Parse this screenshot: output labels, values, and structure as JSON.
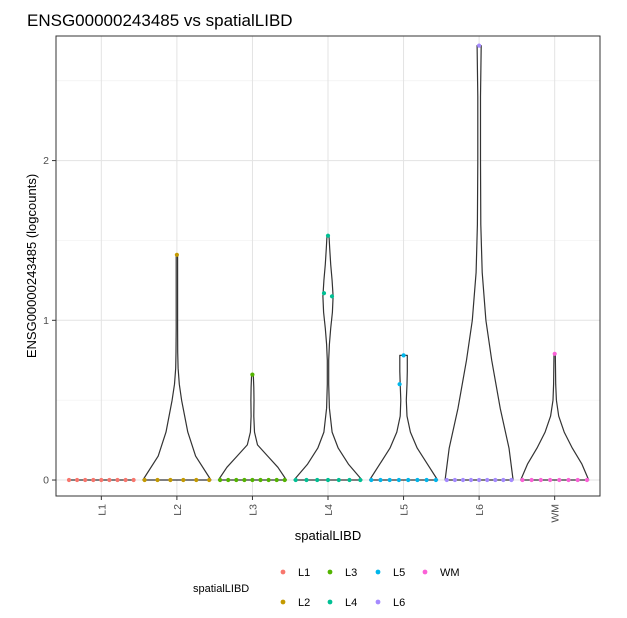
{
  "chart_data": {
    "type": "violin",
    "title": "ENSG00000243485 vs spatialLIBD",
    "xlabel": "spatialLIBD",
    "ylabel": "ENSG00000243485 (logcounts)",
    "categories": [
      "L1",
      "L2",
      "L3",
      "L4",
      "L5",
      "L6",
      "WM"
    ],
    "ylim": [
      -0.1,
      2.78
    ],
    "yticks": [
      0,
      1,
      2
    ],
    "grid": true,
    "legend": {
      "title": "spatialLIBD",
      "position": "bottom",
      "entries": [
        "L1",
        "L2",
        "L3",
        "L4",
        "L5",
        "L6",
        "WM"
      ]
    },
    "colors": {
      "L1": "#F8766D",
      "L2": "#C49A00",
      "L3": "#53B400",
      "L4": "#00C094",
      "L5": "#00B6EB",
      "L6": "#A58AFF",
      "WM": "#FB61D7"
    },
    "violins": [
      {
        "category": "L1",
        "max": 0,
        "profile": [
          [
            0,
            1
          ]
        ]
      },
      {
        "category": "L2",
        "max": 1.41,
        "profile": [
          [
            0,
            1
          ],
          [
            0.15,
            0.55
          ],
          [
            0.3,
            0.32
          ],
          [
            0.5,
            0.14
          ],
          [
            0.6,
            0.07
          ],
          [
            0.7,
            0.035
          ],
          [
            0.8,
            0.025
          ],
          [
            0.95,
            0.02
          ],
          [
            1.1,
            0.02
          ],
          [
            1.25,
            0.02
          ],
          [
            1.41,
            0.02
          ]
        ]
      },
      {
        "category": "L3",
        "max": 0.66,
        "profile": [
          [
            0,
            1
          ],
          [
            0.08,
            0.75
          ],
          [
            0.15,
            0.45
          ],
          [
            0.22,
            0.15
          ],
          [
            0.3,
            0.06
          ],
          [
            0.4,
            0.04
          ],
          [
            0.5,
            0.045
          ],
          [
            0.58,
            0.04
          ],
          [
            0.66,
            0.025
          ]
        ]
      },
      {
        "category": "L4",
        "max": 1.53,
        "profile": [
          [
            0,
            1
          ],
          [
            0.1,
            0.6
          ],
          [
            0.2,
            0.3
          ],
          [
            0.3,
            0.12
          ],
          [
            0.45,
            0.04
          ],
          [
            0.6,
            0.02
          ],
          [
            0.75,
            0.02
          ],
          [
            0.85,
            0.04
          ],
          [
            0.95,
            0.08
          ],
          [
            1.05,
            0.13
          ],
          [
            1.15,
            0.15
          ],
          [
            1.25,
            0.12
          ],
          [
            1.35,
            0.08
          ],
          [
            1.45,
            0.05
          ],
          [
            1.53,
            0.03
          ]
        ]
      },
      {
        "category": "L5",
        "max": 0.78,
        "profile": [
          [
            0,
            1
          ],
          [
            0.1,
            0.7
          ],
          [
            0.2,
            0.4
          ],
          [
            0.3,
            0.2
          ],
          [
            0.4,
            0.1
          ],
          [
            0.5,
            0.08
          ],
          [
            0.6,
            0.1
          ],
          [
            0.68,
            0.11
          ],
          [
            0.78,
            0.11
          ]
        ]
      },
      {
        "category": "L6",
        "max": 2.72,
        "profile": [
          [
            0,
            1
          ],
          [
            0.2,
            0.88
          ],
          [
            0.45,
            0.62
          ],
          [
            0.75,
            0.37
          ],
          [
            1.0,
            0.2
          ],
          [
            1.3,
            0.09
          ],
          [
            1.6,
            0.05
          ],
          [
            2.0,
            0.04
          ],
          [
            2.4,
            0.04
          ],
          [
            2.72,
            0.06
          ]
        ]
      },
      {
        "category": "WM",
        "max": 0.79,
        "profile": [
          [
            0,
            1
          ],
          [
            0.1,
            0.8
          ],
          [
            0.2,
            0.52
          ],
          [
            0.3,
            0.28
          ],
          [
            0.4,
            0.12
          ],
          [
            0.5,
            0.05
          ],
          [
            0.6,
            0.03
          ],
          [
            0.7,
            0.025
          ],
          [
            0.79,
            0.02
          ]
        ]
      }
    ],
    "points": [
      {
        "category": "L1",
        "y": [
          0,
          0,
          0,
          0,
          0,
          0,
          0,
          0,
          0
        ]
      },
      {
        "category": "L2",
        "y": [
          1.41,
          0,
          0,
          0,
          0,
          0,
          0
        ]
      },
      {
        "category": "L3",
        "y": [
          0.66,
          0,
          0,
          0,
          0,
          0,
          0,
          0,
          0,
          0
        ]
      },
      {
        "category": "L4",
        "y": [
          1.53,
          1.17,
          1.15,
          0,
          0,
          0,
          0,
          0,
          0,
          0
        ]
      },
      {
        "category": "L5",
        "y": [
          0.78,
          0.6,
          0,
          0,
          0,
          0,
          0,
          0,
          0,
          0
        ]
      },
      {
        "category": "L6",
        "y": [
          2.72,
          0,
          0,
          0,
          0,
          0,
          0,
          0,
          0,
          0
        ]
      },
      {
        "category": "WM",
        "y": [
          0.79,
          0,
          0,
          0,
          0,
          0,
          0,
          0,
          0
        ]
      }
    ]
  }
}
